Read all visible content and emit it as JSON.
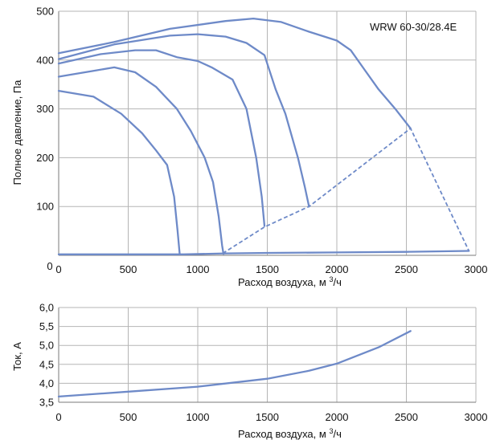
{
  "colors": {
    "series": "#6e8ac8",
    "grid": "#b5b5b5"
  },
  "chart_data": [
    {
      "type": "line",
      "annotations": [
        "WRW 60-30/28.4E"
      ],
      "xlabel": "Расход воздуха, м3/ч",
      "ylabel": "Полное давление, Па",
      "xlim": [
        0,
        3000
      ],
      "ylim": [
        0,
        500
      ],
      "x_ticks": [
        "0",
        "500",
        "1000",
        "1500",
        "2000",
        "2500",
        "3000"
      ],
      "y_ticks": [
        "0",
        "100",
        "200",
        "300",
        "400",
        "500"
      ],
      "grid": true,
      "series": [
        {
          "style": "solid",
          "points": [
            [
              0,
              337
            ],
            [
              250,
              325
            ],
            [
              450,
              290
            ],
            [
              600,
              250
            ],
            [
              700,
              215
            ],
            [
              780,
              185
            ],
            [
              830,
              120
            ],
            [
              855,
              50
            ],
            [
              870,
              3
            ]
          ]
        },
        {
          "style": "solid",
          "points": [
            [
              0,
              366
            ],
            [
              250,
              378
            ],
            [
              400,
              385
            ],
            [
              550,
              375
            ],
            [
              700,
              345
            ],
            [
              850,
              300
            ],
            [
              950,
              255
            ],
            [
              1050,
              200
            ],
            [
              1110,
              150
            ],
            [
              1150,
              80
            ],
            [
              1175,
              20
            ],
            [
              1185,
              3
            ]
          ]
        },
        {
          "style": "solid",
          "points": [
            [
              0,
              393
            ],
            [
              300,
              412
            ],
            [
              550,
              420
            ],
            [
              700,
              420
            ],
            [
              850,
              406
            ],
            [
              1000,
              398
            ],
            [
              1100,
              385
            ],
            [
              1250,
              360
            ],
            [
              1350,
              300
            ],
            [
              1420,
              200
            ],
            [
              1460,
              120
            ],
            [
              1480,
              60
            ]
          ]
        },
        {
          "style": "solid",
          "points": [
            [
              0,
              402
            ],
            [
              400,
              432
            ],
            [
              800,
              450
            ],
            [
              1000,
              453
            ],
            [
              1200,
              448
            ],
            [
              1350,
              435
            ],
            [
              1480,
              410
            ],
            [
              1560,
              340
            ],
            [
              1630,
              290
            ],
            [
              1720,
              200
            ],
            [
              1770,
              140
            ],
            [
              1800,
              100
            ]
          ]
        },
        {
          "style": "solid",
          "points": [
            [
              0,
              414
            ],
            [
              400,
              437
            ],
            [
              800,
              464
            ],
            [
              1200,
              480
            ],
            [
              1400,
              485
            ],
            [
              1600,
              478
            ],
            [
              1800,
              458
            ],
            [
              2000,
              440
            ],
            [
              2100,
              420
            ],
            [
              2200,
              380
            ],
            [
              2300,
              340
            ],
            [
              2420,
              300
            ],
            [
              2530,
              260
            ]
          ]
        },
        {
          "style": "solid",
          "points": [
            [
              0,
              2
            ],
            [
              900,
              2
            ],
            [
              1200,
              4
            ],
            [
              1500,
              5
            ],
            [
              2000,
              6
            ],
            [
              2500,
              7
            ],
            [
              2950,
              9
            ]
          ]
        },
        {
          "style": "dashed",
          "points": [
            [
              1180,
              4
            ],
            [
              1480,
              58
            ],
            [
              1800,
              100
            ],
            [
              2530,
              260
            ],
            [
              2950,
              9
            ]
          ]
        }
      ]
    },
    {
      "type": "line",
      "xlabel": "Расход воздуха, м3/ч",
      "ylabel": "Ток, А",
      "xlim": [
        0,
        3000
      ],
      "ylim": [
        3.5,
        6.0
      ],
      "x_ticks": [
        "0",
        "500",
        "1000",
        "1500",
        "2000",
        "2500",
        "3000"
      ],
      "y_ticks": [
        "3,5",
        "4,0",
        "4,5",
        "5,0",
        "5,5",
        "6,0"
      ],
      "grid": true,
      "series": [
        {
          "style": "solid",
          "points": [
            [
              0,
              3.65
            ],
            [
              500,
              3.78
            ],
            [
              1000,
              3.91
            ],
            [
              1500,
              4.12
            ],
            [
              1800,
              4.33
            ],
            [
              2000,
              4.52
            ],
            [
              2300,
              4.95
            ],
            [
              2530,
              5.38
            ]
          ]
        }
      ]
    }
  ]
}
